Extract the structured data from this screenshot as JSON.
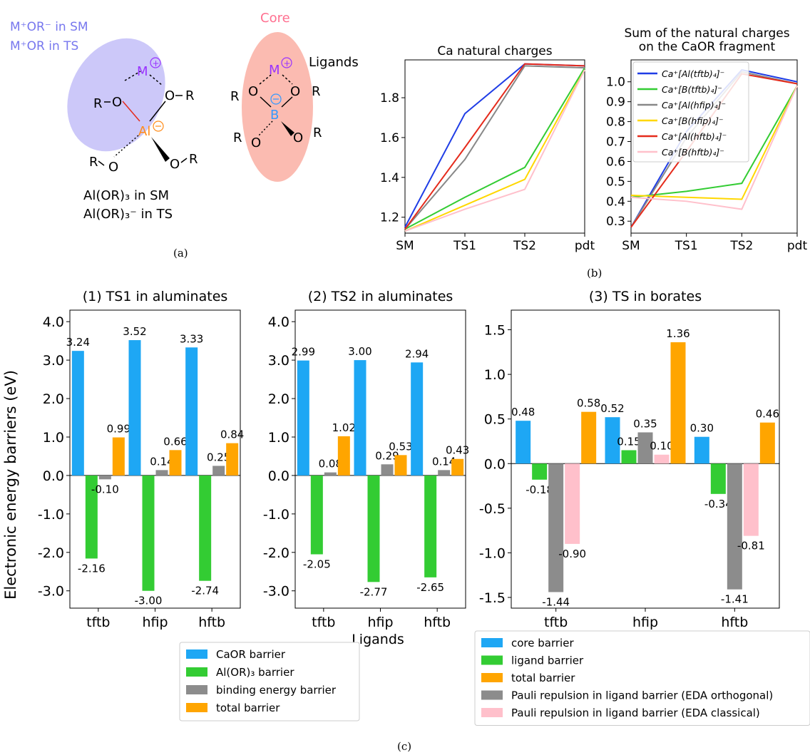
{
  "panel_labels": {
    "a": "(a)",
    "b": "(b)",
    "c": "(c)"
  },
  "schematic_al": {
    "label_line1": "M⁺OR⁻ in SM",
    "label_line2": "M⁺OR  in TS",
    "metal": "M",
    "center": "Al",
    "o": "O",
    "r": "R",
    "caption_line1": "Al(OR)₃   in SM",
    "caption_line2": "Al(OR)₃⁻  in TS",
    "colors": {
      "metal": "#9933ff",
      "center": "#ff8c1a",
      "ellipse": "#c4c0f8",
      "text_label": "#7777ee"
    }
  },
  "schematic_b": {
    "core_label": "Core",
    "ligands_label": "Ligands",
    "metal": "M",
    "center": "B",
    "o": "O",
    "r": "R",
    "colors": {
      "metal": "#9933ff",
      "center": "#3399ff",
      "ellipse": "#fbb4a8",
      "core_text": "#ff7090"
    }
  },
  "chart_data": [
    {
      "id": "ca_charges",
      "type": "line",
      "title": "Ca natural charges",
      "x": [
        "SM",
        "TS1",
        "TS2",
        "pdt"
      ],
      "ylim": [
        1.12,
        1.99
      ],
      "yticks": [
        1.2,
        1.4,
        1.6,
        1.8
      ],
      "series": [
        {
          "color": "#1f3de6",
          "values": [
            1.15,
            1.72,
            1.97,
            1.96
          ]
        },
        {
          "color": "#33cc33",
          "values": [
            1.14,
            1.3,
            1.45,
            1.95
          ]
        },
        {
          "color": "#888888",
          "values": [
            1.14,
            1.49,
            1.96,
            1.95
          ]
        },
        {
          "color": "#ffd700",
          "values": [
            1.13,
            1.26,
            1.39,
            1.94
          ]
        },
        {
          "color": "#e52b1c",
          "values": [
            1.14,
            1.55,
            1.97,
            1.96
          ]
        },
        {
          "color": "#ffc0cb",
          "values": [
            1.13,
            1.24,
            1.34,
            1.94
          ]
        }
      ]
    },
    {
      "id": "caor_charges",
      "type": "line",
      "title": [
        "Sum of the natural charges",
        "on the CaOR fragment"
      ],
      "x": [
        "SM",
        "TS1",
        "TS2",
        "pdt"
      ],
      "ylim": [
        0.24,
        1.11
      ],
      "yticks": [
        0.3,
        0.4,
        0.5,
        0.6,
        0.7,
        0.8,
        0.9,
        1.0
      ],
      "legend_position": "top-left",
      "series": [
        {
          "name": "Ca⁺[Al(tftb)₄]⁻",
          "color": "#1f3de6",
          "values": [
            0.27,
            0.75,
            1.06,
            1.0
          ]
        },
        {
          "name": "Ca⁺[B(tftb)₄]⁻",
          "color": "#33cc33",
          "values": [
            0.42,
            0.45,
            0.49,
            0.98
          ]
        },
        {
          "name": "Ca⁺[Al(hfip)₄]⁻",
          "color": "#888888",
          "values": [
            0.27,
            0.72,
            1.05,
            0.99
          ]
        },
        {
          "name": "Ca⁺[B(hfip)₄]⁻",
          "color": "#ffd700",
          "values": [
            0.43,
            0.42,
            0.41,
            0.98
          ]
        },
        {
          "name": "Ca⁺[Al(hftb)₄]⁻",
          "color": "#e52b1c",
          "values": [
            0.27,
            0.65,
            1.04,
            0.99
          ]
        },
        {
          "name": "Ca⁺[B(hftb)₄]⁻",
          "color": "#ffc0cb",
          "values": [
            0.42,
            0.4,
            0.36,
            0.98
          ]
        }
      ]
    },
    {
      "id": "ts1_aluminates",
      "type": "bar",
      "title": "(1) TS1 in aluminates",
      "ylabel": "Electronic energy barriers (eV)",
      "categories": [
        "tftb",
        "hfip",
        "hftb"
      ],
      "ylim": [
        -3.45,
        4.3
      ],
      "yticks": [
        "4.0",
        "3.0",
        "2.0",
        "1.0",
        "0.0",
        "-1.0",
        "-2.0",
        "-3.0"
      ],
      "series": [
        {
          "name": "CaOR barrier",
          "color": "#1ea7f4",
          "values": [
            3.24,
            3.52,
            3.33
          ]
        },
        {
          "name": "Al(OR)₃ barrier",
          "color": "#33cc33",
          "values": [
            -2.16,
            -3.0,
            -2.74
          ]
        },
        {
          "name": "binding energy barrier",
          "color": "#8c8c8c",
          "values": [
            -0.1,
            0.14,
            0.25
          ]
        },
        {
          "name": "total barrier",
          "color": "#ffa500",
          "values": [
            0.99,
            0.66,
            0.84
          ]
        }
      ]
    },
    {
      "id": "ts2_aluminates",
      "type": "bar",
      "title": "(2) TS2 in aluminates",
      "categories": [
        "tftb",
        "hfip",
        "hftb"
      ],
      "ylim": [
        -3.45,
        4.3
      ],
      "yticks": [
        "4.0",
        "3.0",
        "2.0",
        "1.0",
        "0.0",
        "-1.0",
        "-2.0",
        "-3.0"
      ],
      "series": [
        {
          "name": "CaOR barrier",
          "color": "#1ea7f4",
          "values": [
            2.99,
            3.0,
            2.94
          ]
        },
        {
          "name": "Al(OR)₃ barrier",
          "color": "#33cc33",
          "values": [
            -2.05,
            -2.77,
            -2.65
          ]
        },
        {
          "name": "binding energy barrier",
          "color": "#8c8c8c",
          "values": [
            0.08,
            0.29,
            0.14
          ]
        },
        {
          "name": "total barrier",
          "color": "#ffa500",
          "values": [
            1.02,
            0.53,
            0.43
          ]
        }
      ]
    },
    {
      "id": "ts_borates",
      "type": "bar",
      "title": "(3) TS in borates",
      "categories": [
        "tftb",
        "hfip",
        "hftb"
      ],
      "ylim": [
        -1.62,
        1.72
      ],
      "yticks": [
        "1.5",
        "1.0",
        "0.5",
        "0.0",
        "-0.5",
        "-1.0",
        "-1.5"
      ],
      "series": [
        {
          "name": "core barrier",
          "color": "#1ea7f4",
          "values": [
            0.48,
            0.52,
            0.3
          ]
        },
        {
          "name": "ligand barrier",
          "color": "#33cc33",
          "values": [
            -0.18,
            0.15,
            -0.34
          ]
        },
        {
          "name": "Pauli repulsion in ligand barrier (EDA orthogonal)",
          "color": "#8c8c8c",
          "values": [
            -1.44,
            0.35,
            -1.41
          ]
        },
        {
          "name": "Pauli repulsion in ligand barrier (EDA classical)",
          "color": "#ffc0cb",
          "values": [
            -0.9,
            0.1,
            -0.81
          ]
        },
        {
          "name": "total barrier",
          "color": "#ffa500",
          "values": [
            0.58,
            1.36,
            0.46
          ]
        }
      ]
    }
  ],
  "shared_xlabel": "Ligands",
  "legend_aluminates": [
    {
      "label": "CaOR barrier",
      "color": "#1ea7f4"
    },
    {
      "label": "Al(OR)₃ barrier",
      "color": "#33cc33"
    },
    {
      "label": "binding energy barrier",
      "color": "#8c8c8c"
    },
    {
      "label": "total barrier",
      "color": "#ffa500"
    }
  ],
  "legend_borates": [
    {
      "label": "core barrier",
      "color": "#1ea7f4"
    },
    {
      "label": "ligand barrier",
      "color": "#33cc33"
    },
    {
      "label": "total barrier",
      "color": "#ffa500"
    },
    {
      "label": "Pauli repulsion in ligand barrier (EDA orthogonal)",
      "color": "#8c8c8c"
    },
    {
      "label": "Pauli repulsion in ligand barrier (EDA classical)",
      "color": "#ffc0cb"
    }
  ]
}
